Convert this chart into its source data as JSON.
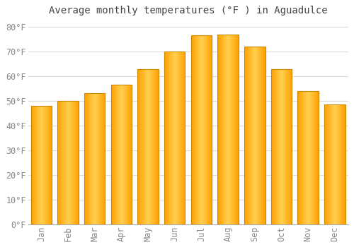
{
  "title": "Average monthly temperatures (°F ) in Aguadulce",
  "months": [
    "Jan",
    "Feb",
    "Mar",
    "Apr",
    "May",
    "Jun",
    "Jul",
    "Aug",
    "Sep",
    "Oct",
    "Nov",
    "Dec"
  ],
  "values": [
    48,
    50,
    53,
    56.5,
    63,
    70,
    76.5,
    77,
    72,
    63,
    54,
    48.5
  ],
  "bar_color_center": "#FFD050",
  "bar_color_edge": "#FFA000",
  "background_color": "#FFFFFF",
  "grid_color": "#DDDDDD",
  "yticks": [
    0,
    10,
    20,
    30,
    40,
    50,
    60,
    70,
    80
  ],
  "ylim": [
    0,
    83
  ],
  "title_fontsize": 10,
  "tick_fontsize": 8.5,
  "tick_color": "#888888"
}
